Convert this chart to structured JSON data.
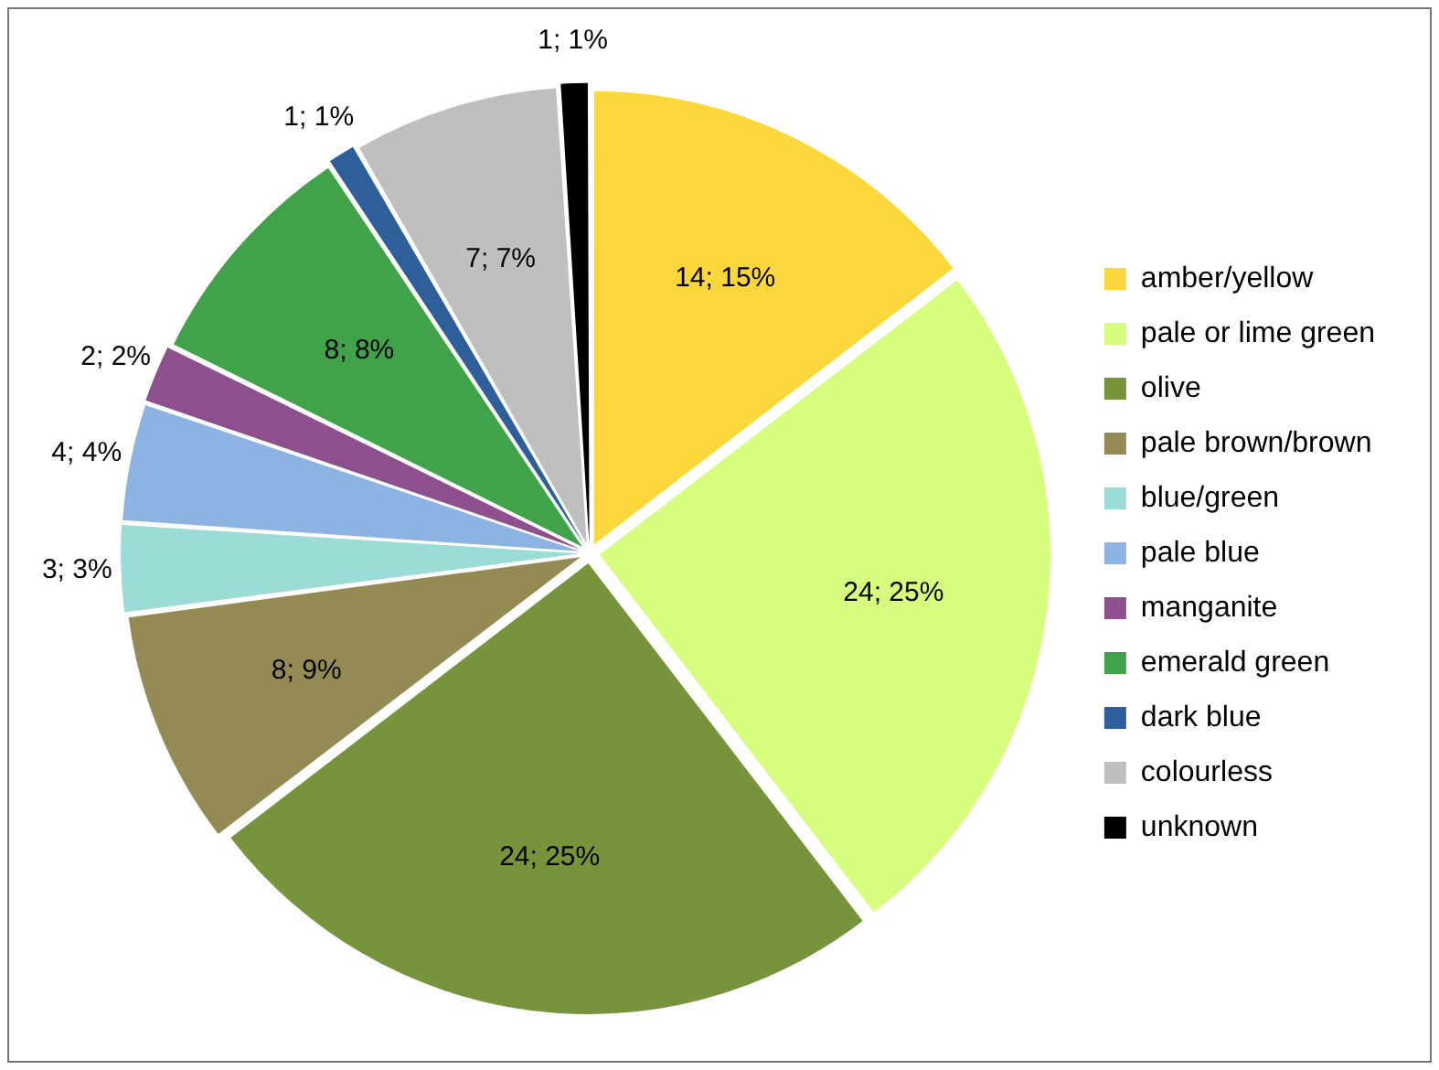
{
  "chart_data": {
    "type": "pie",
    "categories": [
      "amber/yellow",
      "pale or lime green",
      "olive",
      "pale brown/brown",
      "blue/green",
      "pale blue",
      "manganite",
      "emerald green",
      "dark blue",
      "colourless",
      "unknown"
    ],
    "values": [
      14,
      24,
      24,
      8,
      3,
      4,
      2,
      8,
      1,
      7,
      1
    ],
    "colors": [
      "#fcd73c",
      "#d7fd7e",
      "#77933c",
      "#948a54",
      "#9bdcd6",
      "#8db3e2",
      "#8e4f8f",
      "#40a34a",
      "#2e5f9a",
      "#bfbfbf",
      "#000000"
    ],
    "value_labels": [
      "14; 15%",
      "24; 25%",
      "24; 25%",
      "8; 9%",
      "3; 3%",
      "4; 4%",
      "2; 2%",
      "8; 8%",
      "1; 1%",
      "7; 7%",
      "1; 1%"
    ],
    "legend": "right"
  }
}
